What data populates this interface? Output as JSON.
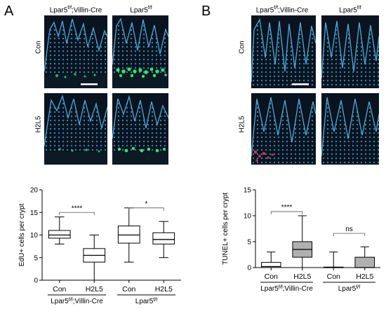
{
  "figure": {
    "panel_a": {
      "letter": "A",
      "col_headers": [
        "Lpar5",
        "f/f",
        ";Villin-Cre",
        "Lpar5",
        "f/f"
      ],
      "row_labels": [
        "Con",
        "H2L5"
      ]
    },
    "panel_b": {
      "letter": "B",
      "col_headers": [
        "Lpar5",
        "f/f",
        ";Villin-Cre",
        "Lpar5",
        "f/f"
      ],
      "row_labels": [
        "Con",
        "H2L5"
      ]
    }
  },
  "chart_data": [
    {
      "type": "boxplot",
      "ylabel": "EdU+ cells per crypt",
      "ylim": [
        0,
        20
      ],
      "yticks": [
        "0",
        "5",
        "10",
        "15",
        "20"
      ],
      "categories": [
        "Con",
        "H2L5",
        "Con",
        "H2L5"
      ],
      "groups": [
        {
          "label_main": "Lpar5",
          "label_sup": "f/f",
          "label_tail": ";Villin-Cre"
        },
        {
          "label_main": "Lpar5",
          "label_sup": "f/f",
          "label_tail": ""
        }
      ],
      "boxes": [
        {
          "min": 8,
          "q1": 9.3,
          "median": 10,
          "q3": 11,
          "max": 14,
          "fill": "#ffffff"
        },
        {
          "min": 0,
          "q1": 4,
          "median": 5.5,
          "q3": 7,
          "max": 10,
          "fill": "#ffffff"
        },
        {
          "min": 4,
          "q1": 8.2,
          "median": 10,
          "q3": 12,
          "max": 16,
          "fill": "#ffffff"
        },
        {
          "min": 5,
          "q1": 8,
          "median": 9,
          "q3": 10.5,
          "max": 13,
          "fill": "#ffffff"
        }
      ],
      "significance": [
        {
          "from": 0,
          "to": 1,
          "y": 15,
          "label": "****"
        },
        {
          "from": 2,
          "to": 3,
          "y": 16,
          "label": "*"
        }
      ]
    },
    {
      "type": "boxplot",
      "ylabel": "TUNEL+ cells per crypt",
      "ylim": [
        0,
        15
      ],
      "yticks": [
        "0",
        "5",
        "10",
        "15"
      ],
      "categories": [
        "Con",
        "H2L5",
        "Con",
        "H2L5"
      ],
      "groups": [
        {
          "label_main": "Lpar5",
          "label_sup": "f/f",
          "label_tail": ";Villin-Cre"
        },
        {
          "label_main": "Lpar5",
          "label_sup": "f/f",
          "label_tail": ""
        }
      ],
      "boxes": [
        {
          "min": 0,
          "q1": 0,
          "median": 0.2,
          "q3": 1,
          "max": 3,
          "fill": "#ffffff"
        },
        {
          "min": 0,
          "q1": 2,
          "median": 3.5,
          "q3": 5,
          "max": 10,
          "fill": "#b0b0b0"
        },
        {
          "min": 0,
          "q1": 0,
          "median": 0,
          "q3": 0.1,
          "max": 3,
          "fill": "#ffffff"
        },
        {
          "min": 0,
          "q1": 0,
          "median": 0,
          "q3": 2,
          "max": 4,
          "fill": "#b0b0b0"
        }
      ],
      "significance": [
        {
          "from": 0,
          "to": 1,
          "y": 10.8,
          "label": "****"
        },
        {
          "from": 2,
          "to": 3,
          "y": 6.6,
          "label": "ns"
        }
      ],
      "dotted_zero_line": true
    }
  ]
}
